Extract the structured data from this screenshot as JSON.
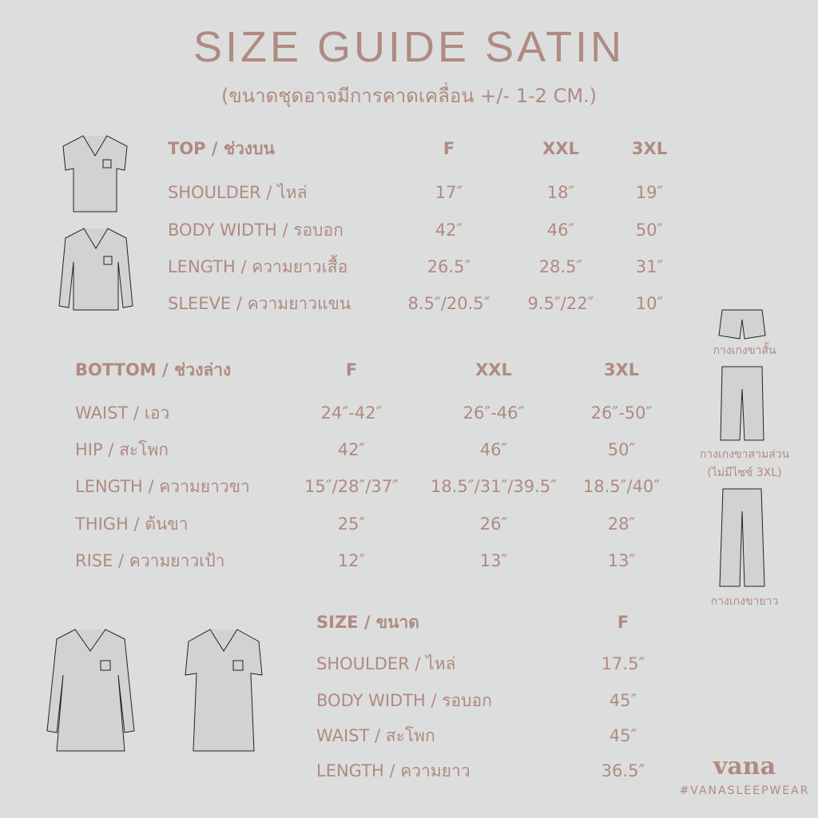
{
  "title": "SIZE GUIDE SATIN",
  "subtitle": "(ขนาดชุดอาจมีการคาดเคลื่อน +/- 1-2 CM.)",
  "colors": {
    "background": "#dcdedd",
    "text": "#b08a82"
  },
  "top_table": {
    "header": [
      "TOP / ช่วงบน",
      "F",
      "XXL",
      "3XL"
    ],
    "rows": [
      [
        "SHOULDER / ไหล่",
        "17″",
        "18″",
        "19″"
      ],
      [
        "BODY WIDTH / รอบอก",
        "42″",
        "46″",
        "50″"
      ],
      [
        "LENGTH / ความยาวเสื้อ",
        "26.5″",
        "28.5″",
        "31″"
      ],
      [
        "SLEEVE / ความยาวแขน",
        "8.5″/20.5″",
        "9.5″/22″",
        "10″"
      ]
    ]
  },
  "bottom_table": {
    "header": [
      "BOTTOM / ช่วงล่าง",
      "F",
      "XXL",
      "3XL"
    ],
    "rows": [
      [
        "WAIST / เอว",
        "24″-42″",
        "26″-46″",
        "26″-50″"
      ],
      [
        "HIP / สะโพก",
        "42″",
        "46″",
        "50″"
      ],
      [
        "LENGTH / ความยาวขา",
        "15″/28″/37″",
        "18.5″/31″/39.5″",
        "18.5″/40″"
      ],
      [
        "THIGH / ต้นขา",
        "25″",
        "26″",
        "28″"
      ],
      [
        "RISE / ความยาวเป้า",
        "12″",
        "13″",
        "13″"
      ]
    ]
  },
  "dress_table": {
    "header": [
      "SIZE / ขนาด",
      "F"
    ],
    "rows": [
      [
        "SHOULDER / ไหล่",
        "17.5″"
      ],
      [
        "BODY WIDTH / รอบอก",
        "45″"
      ],
      [
        "WAIST / สะโพก",
        "45″"
      ],
      [
        "LENGTH / ความยาว",
        "36.5″"
      ]
    ]
  },
  "pants_captions": [
    "กางเกงขาสั้น",
    "กางเกงขาสามส่วน",
    "(ไม่มีไซซ์ 3XL)",
    "กางเกงขายาว"
  ],
  "brand": {
    "logo": "vana",
    "hashtag": "#VANASLEEPWEAR"
  },
  "illustrations": [
    "short-sleeve-shirt-icon",
    "long-sleeve-shirt-icon",
    "short-pants-icon",
    "capri-pants-icon",
    "long-pants-icon",
    "long-sleeve-nightdress-icon",
    "short-sleeve-nightdress-icon"
  ]
}
